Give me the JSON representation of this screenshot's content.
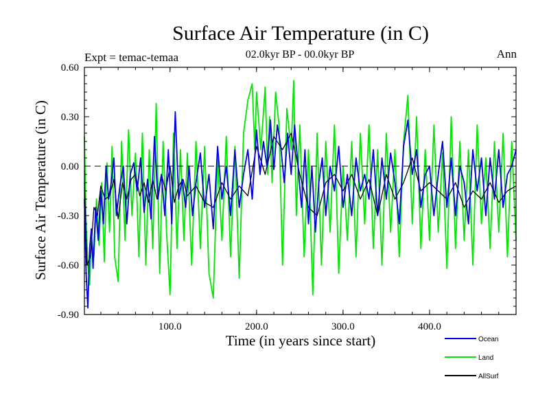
{
  "chart_data": {
    "type": "line",
    "title": "Surface Air Temperature (in C)",
    "subtitle": "02.0kyr BP - 00.0kyr BP",
    "left_label": "Expt = temac-temaa",
    "right_label": "Ann",
    "xlabel": "Time (in years since start)",
    "ylabel": "Surface Air Temperature (in C)",
    "xlim": [
      1,
      500
    ],
    "ylim": [
      -0.9,
      0.6
    ],
    "x_ticks": [
      100,
      200,
      300,
      400
    ],
    "x_tick_labels": [
      "100.0",
      "200.0",
      "300.0",
      "400.0"
    ],
    "y_ticks": [
      -0.9,
      -0.6,
      -0.3,
      0.0,
      0.3,
      0.6
    ],
    "y_tick_labels": [
      "-0.90",
      "-0.60",
      "-0.30",
      "0.00",
      "0.30",
      "0.60"
    ],
    "reference_line": 0.0,
    "legend_position": "bottom-right",
    "series": [
      {
        "name": "Land",
        "color": "#00e600",
        "x": [
          1,
          3,
          5,
          7,
          9,
          12,
          15,
          18,
          21,
          24,
          27,
          30,
          33,
          36,
          40,
          44,
          48,
          52,
          56,
          60,
          64,
          68,
          72,
          76,
          80,
          84,
          88,
          92,
          96,
          100,
          104,
          108,
          112,
          116,
          120,
          125,
          130,
          135,
          140,
          145,
          150,
          155,
          160,
          165,
          170,
          175,
          180,
          185,
          190,
          195,
          198,
          200,
          205,
          210,
          213,
          215,
          218,
          222,
          226,
          230,
          235,
          240,
          243,
          246,
          250,
          255,
          260,
          265,
          270,
          275,
          280,
          285,
          290,
          295,
          300,
          305,
          310,
          315,
          320,
          325,
          330,
          335,
          340,
          345,
          350,
          355,
          360,
          365,
          370,
          375,
          380,
          385,
          390,
          395,
          400,
          405,
          410,
          415,
          420,
          425,
          430,
          435,
          440,
          445,
          450,
          455,
          460,
          465,
          470,
          475,
          480,
          485,
          490,
          495,
          500
        ],
        "values": [
          0.18,
          -0.35,
          -0.6,
          -0.72,
          -0.45,
          -0.55,
          -0.2,
          -0.48,
          -0.1,
          -0.58,
          0.02,
          -0.4,
          0.12,
          -0.55,
          -0.7,
          0.15,
          -0.45,
          0.22,
          -0.3,
          0.08,
          -0.55,
          0.2,
          -0.6,
          0.1,
          -0.5,
          0.38,
          -0.65,
          0.15,
          -0.4,
          -0.78,
          0.2,
          -0.5,
          0.1,
          -0.45,
          0.08,
          -0.6,
          0.15,
          -0.5,
          0.12,
          -0.65,
          -0.8,
          0.05,
          -0.45,
          0.18,
          -0.55,
          0.12,
          -0.68,
          0.2,
          0.4,
          0.5,
          0.1,
          0.45,
          0.1,
          0.48,
          -0.05,
          0.3,
          -0.1,
          0.45,
          0.25,
          -0.6,
          0.35,
          0.1,
          0.52,
          -0.3,
          0.25,
          -0.55,
          0.1,
          -0.78,
          0.2,
          -0.6,
          0.15,
          -0.4,
          0.25,
          -0.65,
          0.0,
          -0.45,
          0.15,
          -0.55,
          0.2,
          -0.35,
          0.25,
          -0.5,
          0.1,
          -0.6,
          0.2,
          -0.4,
          0.1,
          -0.55,
          0.15,
          0.43,
          -0.35,
          0.3,
          -0.5,
          0.1,
          -0.45,
          0.25,
          -0.4,
          0.08,
          -0.62,
          0.3,
          -0.5,
          0.15,
          -0.45,
          0.1,
          -0.6,
          0.25,
          -0.35,
          0.05,
          -0.5,
          0.15,
          -0.4,
          0.2,
          -0.55,
          0.15,
          -0.45
        ]
      },
      {
        "name": "AllSurf",
        "color": "#000000",
        "x": [
          1,
          4,
          8,
          12,
          16,
          20,
          25,
          30,
          35,
          40,
          45,
          50,
          55,
          60,
          65,
          70,
          75,
          80,
          85,
          90,
          95,
          100,
          105,
          110,
          115,
          120,
          130,
          140,
          150,
          160,
          170,
          180,
          190,
          200,
          210,
          220,
          230,
          240,
          250,
          260,
          270,
          280,
          290,
          300,
          310,
          320,
          330,
          340,
          350,
          360,
          370,
          380,
          390,
          400,
          410,
          420,
          430,
          440,
          450,
          460,
          470,
          480,
          490,
          500
        ],
        "values": [
          -0.1,
          -0.6,
          -0.55,
          -0.25,
          -0.3,
          -0.12,
          -0.2,
          -0.18,
          -0.08,
          -0.32,
          -0.1,
          -0.2,
          -0.08,
          -0.05,
          -0.18,
          -0.1,
          -0.22,
          -0.08,
          -0.2,
          -0.05,
          -0.15,
          0.0,
          -0.22,
          -0.12,
          -0.08,
          -0.18,
          -0.12,
          -0.22,
          -0.25,
          -0.1,
          -0.2,
          -0.12,
          -0.18,
          0.12,
          -0.05,
          0.18,
          0.1,
          0.2,
          -0.05,
          -0.25,
          -0.3,
          -0.1,
          -0.05,
          -0.15,
          -0.05,
          -0.2,
          -0.08,
          -0.3,
          -0.05,
          -0.2,
          -0.1,
          0.05,
          -0.15,
          -0.1,
          -0.15,
          -0.2,
          -0.1,
          -0.25,
          -0.15,
          -0.2,
          -0.1,
          -0.22,
          -0.15,
          -0.12
        ]
      },
      {
        "name": "Ocean",
        "color": "#0000e6",
        "x": [
          1,
          3,
          5,
          7,
          9,
          11,
          14,
          17,
          20,
          23,
          26,
          29,
          32,
          35,
          38,
          42,
          46,
          50,
          54,
          58,
          62,
          66,
          70,
          74,
          78,
          82,
          86,
          90,
          94,
          98,
          102,
          106,
          110,
          114,
          118,
          122,
          126,
          130,
          135,
          140,
          145,
          150,
          155,
          160,
          165,
          170,
          175,
          180,
          185,
          190,
          195,
          200,
          204,
          208,
          212,
          216,
          220,
          224,
          228,
          232,
          236,
          240,
          244,
          248,
          252,
          256,
          260,
          264,
          268,
          272,
          276,
          280,
          285,
          290,
          295,
          300,
          305,
          310,
          315,
          320,
          325,
          330,
          335,
          340,
          345,
          350,
          355,
          360,
          365,
          370,
          375,
          380,
          385,
          390,
          395,
          400,
          405,
          410,
          415,
          420,
          425,
          430,
          435,
          440,
          445,
          450,
          455,
          460,
          465,
          470,
          475,
          480,
          485,
          490,
          495,
          500
        ],
        "values": [
          -0.2,
          -0.65,
          -0.86,
          -0.5,
          -0.38,
          -0.62,
          -0.25,
          -0.45,
          -0.15,
          -0.35,
          0.0,
          -0.2,
          -0.1,
          0.05,
          -0.3,
          -0.12,
          0.0,
          -0.35,
          -0.05,
          0.02,
          -0.15,
          0.05,
          -0.28,
          -0.08,
          -0.32,
          0.18,
          -0.2,
          -0.05,
          -0.3,
          0.1,
          -0.35,
          0.33,
          -0.2,
          -0.08,
          -0.25,
          0.0,
          -0.3,
          -0.1,
          0.08,
          -0.25,
          -0.05,
          -0.38,
          0.12,
          -0.2,
          0.0,
          -0.3,
          0.1,
          -0.25,
          -0.05,
          0.1,
          -0.2,
          0.22,
          -0.05,
          0.15,
          0.0,
          0.28,
          -0.02,
          0.25,
          0.12,
          -0.1,
          0.2,
          -0.05,
          0.25,
          0.0,
          -0.25,
          0.1,
          -0.35,
          0.0,
          -0.4,
          -0.1,
          0.05,
          -0.3,
          0.0,
          -0.15,
          0.12,
          -0.25,
          -0.05,
          -0.3,
          0.05,
          -0.15,
          -0.05,
          -0.2,
          0.1,
          -0.3,
          0.05,
          -0.2,
          0.08,
          -0.1,
          -0.35,
          0.12,
          0.28,
          -0.05,
          0.1,
          -0.25,
          -0.05,
          0.0,
          -0.3,
          -0.05,
          0.15,
          -0.25,
          0.05,
          -0.3,
          0.0,
          -0.1,
          -0.35,
          0.1,
          -0.15,
          0.05,
          -0.3,
          0.05,
          -0.2,
          0.1,
          -0.25,
          -0.05,
          0.0,
          0.1
        ]
      }
    ],
    "legend": [
      {
        "name": "Ocean",
        "color": "#0000e6"
      },
      {
        "name": "Land",
        "color": "#00e600"
      },
      {
        "name": "AllSurf",
        "color": "#000000"
      }
    ]
  }
}
